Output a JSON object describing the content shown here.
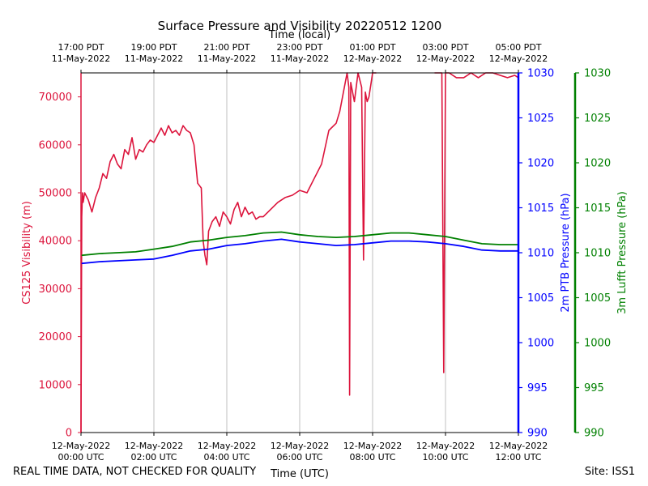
{
  "chart_data": {
    "type": "line",
    "title": "Surface Pressure and Visibility 20220512 1200",
    "top_axis_label": "Time (local)",
    "xlabel": "Time (UTC)",
    "x_unit": "hours since 12-May-2022 00:00 UTC",
    "xlim": [
      0,
      12
    ],
    "x_ticks_bottom": [
      {
        "x": 0,
        "line1": "12-May-2022",
        "line2": "00:00 UTC"
      },
      {
        "x": 2,
        "line1": "12-May-2022",
        "line2": "02:00 UTC"
      },
      {
        "x": 4,
        "line1": "12-May-2022",
        "line2": "04:00 UTC"
      },
      {
        "x": 6,
        "line1": "12-May-2022",
        "line2": "06:00 UTC"
      },
      {
        "x": 8,
        "line1": "12-May-2022",
        "line2": "08:00 UTC"
      },
      {
        "x": 10,
        "line1": "12-May-2022",
        "line2": "10:00 UTC"
      },
      {
        "x": 12,
        "line1": "12-May-2022",
        "line2": "12:00 UTC"
      }
    ],
    "x_ticks_top": [
      {
        "x": 0,
        "line1": "17:00 PDT",
        "line2": "11-May-2022"
      },
      {
        "x": 2,
        "line1": "19:00 PDT",
        "line2": "11-May-2022"
      },
      {
        "x": 4,
        "line1": "21:00 PDT",
        "line2": "11-May-2022"
      },
      {
        "x": 6,
        "line1": "23:00 PDT",
        "line2": "11-May-2022"
      },
      {
        "x": 8,
        "line1": "01:00 PDT",
        "line2": "12-May-2022"
      },
      {
        "x": 10,
        "line1": "03:00 PDT",
        "line2": "12-May-2022"
      },
      {
        "x": 12,
        "line1": "05:00 PDT",
        "line2": "12-May-2022"
      }
    ],
    "axes": {
      "visibility": {
        "label": "CS125 Visibility (m)",
        "ylim": [
          0,
          75000
        ],
        "ticks": [
          0,
          10000,
          20000,
          30000,
          40000,
          50000,
          60000,
          70000
        ],
        "color": "#dc143c"
      },
      "ptb": {
        "label": "2m PTB Pressure (hPa)",
        "ylim": [
          990,
          1030
        ],
        "ticks": [
          990,
          995,
          1000,
          1005,
          1010,
          1015,
          1020,
          1025,
          1030
        ],
        "color": "#0000ff"
      },
      "lufft": {
        "label": "3m Lufft Pressure (hPa)",
        "ylim": [
          990,
          1030
        ],
        "ticks": [
          990,
          995,
          1000,
          1005,
          1010,
          1015,
          1020,
          1025,
          1030
        ],
        "color": "#008000"
      }
    },
    "series": [
      {
        "name": "CS125 Visibility",
        "axis": "visibility",
        "color": "#dc143c",
        "x": [
          0.0,
          0.02,
          0.04,
          0.06,
          0.1,
          0.2,
          0.3,
          0.4,
          0.5,
          0.6,
          0.7,
          0.8,
          0.9,
          1.0,
          1.1,
          1.2,
          1.3,
          1.4,
          1.5,
          1.6,
          1.7,
          1.8,
          1.9,
          2.0,
          2.1,
          2.2,
          2.3,
          2.4,
          2.5,
          2.6,
          2.7,
          2.8,
          2.9,
          3.0,
          3.1,
          3.2,
          3.3,
          3.35,
          3.4,
          3.45,
          3.5,
          3.6,
          3.7,
          3.8,
          3.9,
          4.0,
          4.1,
          4.2,
          4.3,
          4.4,
          4.5,
          4.6,
          4.7,
          4.8,
          4.9,
          5.0,
          5.2,
          5.4,
          5.6,
          5.8,
          6.0,
          6.2,
          6.4,
          6.6,
          6.8,
          7.0,
          7.1,
          7.2,
          7.3,
          7.35,
          7.37,
          7.4,
          7.5,
          7.6,
          7.7,
          7.75,
          7.8,
          7.85,
          7.9,
          7.95,
          8.0,
          8.05,
          8.1,
          9.5,
          9.7,
          9.9,
          9.95,
          10.0,
          10.1,
          10.3,
          10.5,
          10.7,
          10.9,
          11.1,
          11.3,
          11.5,
          11.7,
          11.9,
          12.0
        ],
        "values": [
          0,
          45000,
          50000,
          48000,
          50000,
          48500,
          46000,
          49000,
          51000,
          54000,
          53000,
          56500,
          58000,
          56000,
          55000,
          59000,
          58000,
          61500,
          57000,
          59000,
          58500,
          60000,
          61000,
          60500,
          62000,
          63500,
          62000,
          64000,
          62500,
          63000,
          62000,
          64000,
          63000,
          62500,
          60000,
          52000,
          51000,
          40000,
          37000,
          35000,
          42000,
          44000,
          45000,
          43000,
          46000,
          45000,
          43500,
          46500,
          48000,
          45000,
          47000,
          45500,
          46000,
          44500,
          45000,
          45000,
          46500,
          48000,
          49000,
          49500,
          50500,
          50000,
          53000,
          56000,
          63000,
          64500,
          67000,
          71000,
          75000,
          72000,
          7800,
          73000,
          69000,
          75000,
          72000,
          36000,
          71000,
          69000,
          70000,
          72500,
          75000,
          75000,
          75000,
          null,
          75000,
          75000,
          12500,
          75000,
          75000,
          74000,
          74000,
          75000,
          74000,
          75000,
          75000,
          74500,
          74000,
          74500,
          74000
        ]
      },
      {
        "name": "2m PTB Pressure",
        "axis": "ptb",
        "color": "#0000ff",
        "x": [
          0,
          0.5,
          1,
          1.5,
          2,
          2.5,
          3,
          3.5,
          4,
          4.5,
          5,
          5.5,
          6,
          6.5,
          7,
          7.5,
          8,
          8.5,
          9,
          9.5,
          10,
          10.5,
          11,
          11.5,
          12
        ],
        "values": [
          1008.8,
          1009.0,
          1009.1,
          1009.2,
          1009.3,
          1009.7,
          1010.2,
          1010.4,
          1010.8,
          1011.0,
          1011.3,
          1011.5,
          1011.2,
          1011.0,
          1010.8,
          1010.9,
          1011.1,
          1011.3,
          1011.3,
          1011.2,
          1011.0,
          1010.7,
          1010.3,
          1010.2,
          1010.2
        ]
      },
      {
        "name": "3m Lufft Pressure",
        "axis": "lufft",
        "color": "#008000",
        "x": [
          0,
          0.5,
          1,
          1.5,
          2,
          2.5,
          3,
          3.5,
          4,
          4.5,
          5,
          5.5,
          6,
          6.5,
          7,
          7.5,
          8,
          8.5,
          9,
          9.5,
          10,
          10.5,
          11,
          11.5,
          12
        ],
        "values": [
          1009.7,
          1009.9,
          1010.0,
          1010.1,
          1010.4,
          1010.7,
          1011.2,
          1011.4,
          1011.7,
          1011.9,
          1012.2,
          1012.3,
          1012.0,
          1011.8,
          1011.7,
          1011.8,
          1012.0,
          1012.2,
          1012.2,
          1012.0,
          1011.8,
          1011.4,
          1011.0,
          1010.9,
          1010.9
        ]
      }
    ]
  },
  "footer": {
    "left_note": "REAL TIME DATA, NOT CHECKED FOR QUALITY",
    "site": "Site: ISS1"
  }
}
